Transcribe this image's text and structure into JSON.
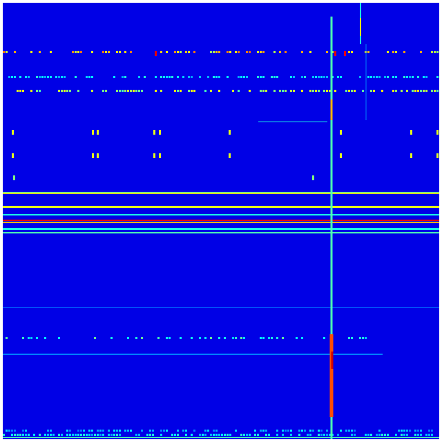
{
  "chart_data": {
    "type": "heatmap",
    "colormap": "jet",
    "title": "",
    "xlabel": "",
    "ylabel": "",
    "grid": false,
    "legend": "none",
    "background_value": 0.1,
    "extent": {
      "cols": 632,
      "rows": 632
    },
    "horizontal_features": [
      {
        "row": 70,
        "from": 0,
        "to": 632,
        "value": 0.65,
        "dashed": true,
        "density": 0.35
      },
      {
        "row": 106,
        "from": 0,
        "to": 632,
        "value": 0.35,
        "dashed": true,
        "density": 0.6
      },
      {
        "row": 126,
        "from": 0,
        "to": 632,
        "value": 0.55,
        "dashed": true,
        "density": 0.55
      },
      {
        "row": 172,
        "from": 370,
        "to": 470,
        "value": 0.4,
        "dashed": false
      },
      {
        "row": 274,
        "from": 0,
        "to": 632,
        "value": 0.5,
        "dashed": false,
        "thickness": 3
      },
      {
        "row": 276,
        "from": 0,
        "to": 632,
        "value": 0.68,
        "dashed": false
      },
      {
        "row": 294,
        "from": 0,
        "to": 632,
        "value": 0.6,
        "dashed": false,
        "thickness": 3
      },
      {
        "row": 306,
        "from": 0,
        "to": 632,
        "value": 0.4,
        "dashed": false,
        "thickness": 2
      },
      {
        "row": 314,
        "from": 0,
        "to": 632,
        "value": 0.9,
        "dashed": false,
        "thickness": 2
      },
      {
        "row": 317,
        "from": 0,
        "to": 632,
        "value": 0.7,
        "dashed": false,
        "thickness": 2
      },
      {
        "row": 326,
        "from": 0,
        "to": 632,
        "value": 0.4,
        "dashed": false,
        "thickness": 3
      },
      {
        "row": 332,
        "from": 0,
        "to": 632,
        "value": 0.45,
        "dashed": false,
        "thickness": 2
      },
      {
        "row": 441,
        "from": 0,
        "to": 632,
        "value": 0.22,
        "dashed": false
      },
      {
        "row": 484,
        "from": 0,
        "to": 550,
        "value": 0.4,
        "dashed": true,
        "density": 0.3
      },
      {
        "row": 508,
        "from": 0,
        "to": 550,
        "value": 0.25,
        "dashed": false,
        "thickness": 2
      },
      {
        "row": 618,
        "from": 0,
        "to": 632,
        "value": 0.3,
        "dashed": true,
        "density": 0.5
      },
      {
        "row": 624,
        "from": 0,
        "to": 632,
        "value": 0.35,
        "dashed": true,
        "density": 0.6
      },
      {
        "row": 629,
        "from": 0,
        "to": 632,
        "value": 0.45,
        "dashed": false
      }
    ],
    "vertical_features": [
      {
        "col": 476,
        "from": 20,
        "to": 632,
        "value": 0.45,
        "thickness": 3
      },
      {
        "col": 476,
        "from": 140,
        "to": 170,
        "value": 0.7,
        "thickness": 3
      },
      {
        "col": 476,
        "from": 480,
        "to": 600,
        "value": 0.8,
        "thickness": 5
      },
      {
        "col": 477,
        "from": 505,
        "to": 530,
        "value": 0.92,
        "thickness": 3
      },
      {
        "col": 518,
        "from": 0,
        "to": 60,
        "value": 0.4,
        "thickness": 2
      },
      {
        "col": 518,
        "from": 22,
        "to": 48,
        "value": 0.65,
        "thickness": 2
      },
      {
        "col": 526,
        "from": 60,
        "to": 170,
        "value": 0.25,
        "thickness": 1
      }
    ],
    "spots": [
      {
        "row": 184,
        "cols": [
          13,
          129,
          136,
          218,
          226,
          327,
          488,
          590,
          628
        ],
        "value": 0.6
      },
      {
        "row": 218,
        "cols": [
          13,
          129,
          136,
          218,
          226,
          327,
          488,
          590,
          628
        ],
        "value": 0.6
      },
      {
        "row": 250,
        "cols": [
          15,
          448
        ],
        "value": 0.5
      },
      {
        "row": 70,
        "cols": [
          220,
          480,
          494
        ],
        "value": 0.9
      }
    ]
  }
}
